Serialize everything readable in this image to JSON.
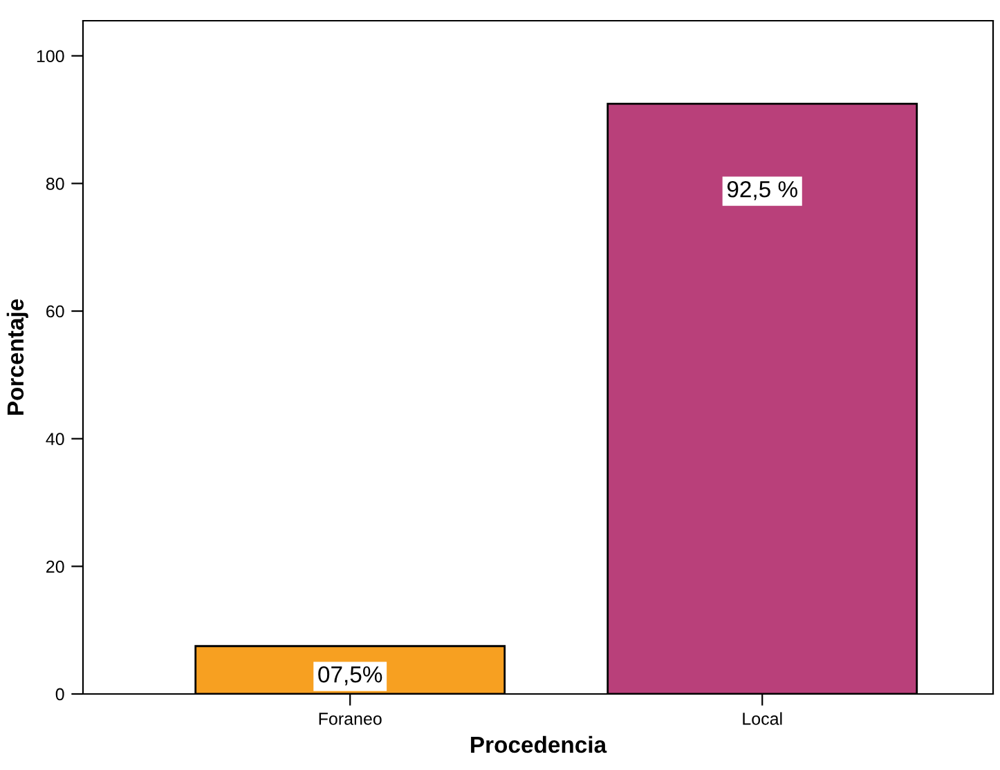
{
  "chart_data": {
    "type": "bar",
    "xlabel": "Procedencia",
    "ylabel": "Porcentaje",
    "categories": [
      "Foraneo",
      "Local"
    ],
    "values": [
      7.5,
      92.5
    ],
    "colors": [
      "#f7a021",
      "#b9407a"
    ],
    "value_labels": [
      "07,5%",
      "92,5 %"
    ],
    "ylim": [
      0,
      105.5
    ],
    "yticks": [
      0,
      20,
      40,
      60,
      80,
      100
    ],
    "grid": false,
    "legend": false
  }
}
